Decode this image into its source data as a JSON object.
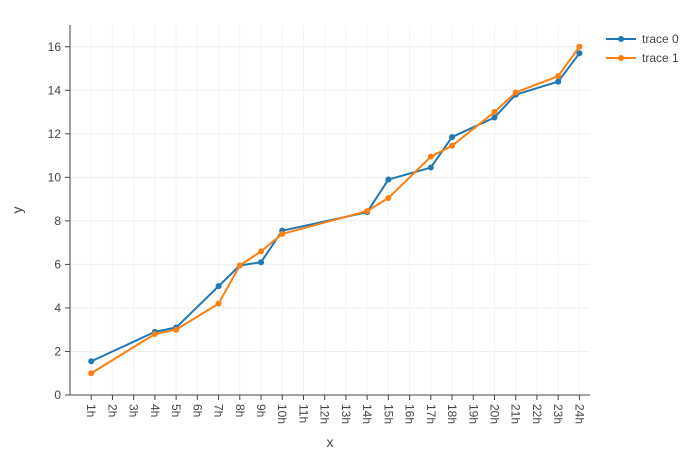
{
  "chart_data": {
    "type": "line",
    "xlabel": "x",
    "ylabel": "y",
    "categories": [
      "1h",
      "2h",
      "3h",
      "4h",
      "5h",
      "6h",
      "7h",
      "8h",
      "9h",
      "10h",
      "11h",
      "12h",
      "13h",
      "14h",
      "15h",
      "16h",
      "17h",
      "18h",
      "19h",
      "20h",
      "21h",
      "22h",
      "23h",
      "24h"
    ],
    "ylim": [
      0,
      17
    ],
    "yticks": [
      0,
      2,
      4,
      6,
      8,
      10,
      12,
      14,
      16
    ],
    "grid": true,
    "legend_position": "top-right",
    "series": [
      {
        "name": "trace 0",
        "color": "#1f77b4",
        "x": [
          "1h",
          "4h",
          "5h",
          "7h",
          "8h",
          "9h",
          "10h",
          "14h",
          "15h",
          "17h",
          "18h",
          "20h",
          "21h",
          "23h",
          "24h"
        ],
        "y": [
          1.55,
          2.9,
          3.1,
          5.0,
          5.95,
          6.1,
          7.55,
          8.4,
          9.9,
          10.45,
          11.85,
          12.75,
          13.8,
          14.4,
          15.7
        ]
      },
      {
        "name": "trace 1",
        "color": "#ff7f0e",
        "x": [
          "1h",
          "4h",
          "5h",
          "7h",
          "8h",
          "9h",
          "10h",
          "14h",
          "15h",
          "17h",
          "18h",
          "20h",
          "21h",
          "23h",
          "24h"
        ],
        "y": [
          1.0,
          2.8,
          3.0,
          4.2,
          5.95,
          6.6,
          7.4,
          8.45,
          9.05,
          10.95,
          11.45,
          13.0,
          13.9,
          14.65,
          16.0
        ]
      }
    ]
  }
}
